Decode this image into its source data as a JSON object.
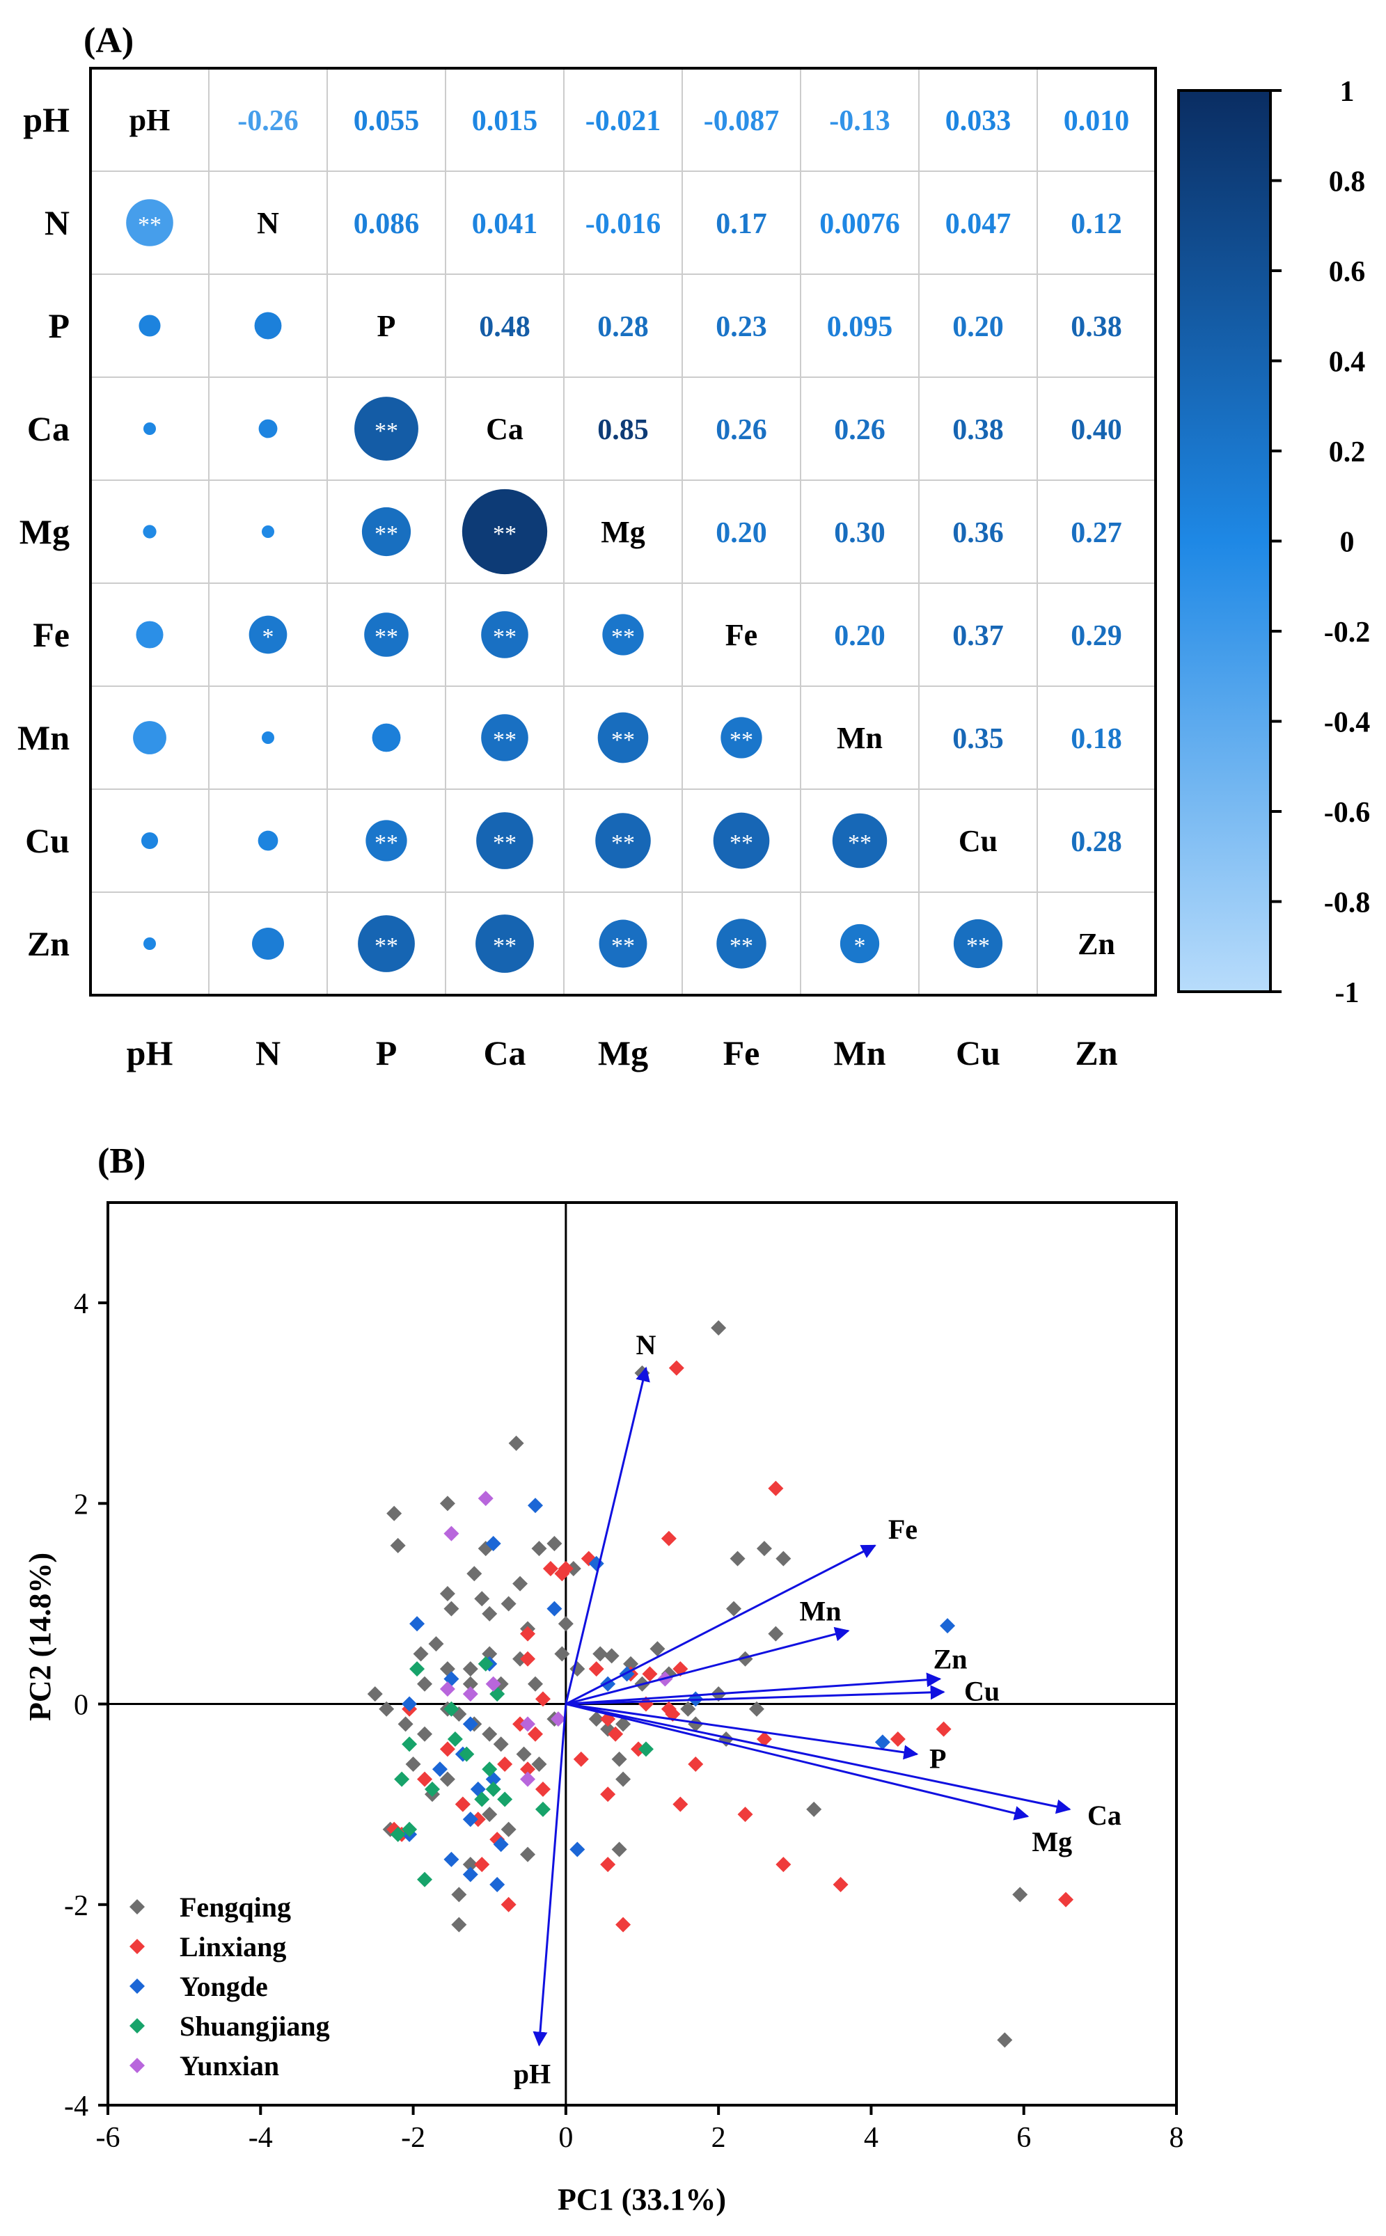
{
  "chart_data": [
    {
      "type": "correlation-matrix",
      "panel_label": "(A)",
      "variables": [
        "pH",
        "N",
        "P",
        "Ca",
        "Mg",
        "Fe",
        "Mn",
        "Cu",
        "Zn"
      ],
      "upper_labels": [
        [
          "",
          "-0.26",
          "0.055",
          "0.015",
          "-0.021",
          "-0.087",
          "-0.13",
          "0.033",
          "0.010"
        ],
        [
          "",
          "",
          "0.086",
          "0.041",
          "-0.016",
          "0.17",
          "0.0076",
          "0.047",
          "0.12"
        ],
        [
          "",
          "",
          "",
          "0.48",
          "0.28",
          "0.23",
          "0.095",
          "0.20",
          "0.38"
        ],
        [
          "",
          "",
          "",
          "",
          "0.85",
          "0.26",
          "0.26",
          "0.38",
          "0.40"
        ],
        [
          "",
          "",
          "",
          "",
          "",
          "0.20",
          "0.30",
          "0.36",
          "0.27"
        ],
        [
          "",
          "",
          "",
          "",
          "",
          "",
          "0.20",
          "0.37",
          "0.29"
        ],
        [
          "",
          "",
          "",
          "",
          "",
          "",
          "",
          "0.35",
          "0.18"
        ],
        [
          "",
          "",
          "",
          "",
          "",
          "",
          "",
          "",
          "0.28"
        ],
        [
          "",
          "",
          "",
          "",
          "",
          "",
          "",
          "",
          ""
        ]
      ],
      "significance": [
        [
          "",
          "",
          "",
          "",
          "",
          "",
          "",
          "",
          ""
        ],
        [
          "**",
          "",
          "",
          "",
          "",
          "",
          "",
          "",
          ""
        ],
        [
          "",
          "",
          "",
          "",
          "",
          "",
          "",
          "",
          ""
        ],
        [
          "",
          "",
          "**",
          "",
          "",
          "",
          "",
          "",
          ""
        ],
        [
          "",
          "",
          "**",
          "**",
          "",
          "",
          "",
          "",
          ""
        ],
        [
          "",
          "*",
          "**",
          "**",
          "**",
          "",
          "",
          "",
          ""
        ],
        [
          "",
          "",
          "",
          "**",
          "**",
          "**",
          "",
          "",
          ""
        ],
        [
          "",
          "",
          "**",
          "**",
          "**",
          "**",
          "**",
          "",
          ""
        ],
        [
          "",
          "",
          "**",
          "**",
          "**",
          "**",
          "*",
          "**",
          ""
        ]
      ],
      "colorbar": {
        "min": -1,
        "max": 1,
        "ticks": [
          "1",
          "0.8",
          "0.6",
          "0.4",
          "0.2",
          "0",
          "-0.2",
          "-0.4",
          "-0.6",
          "-0.8",
          "-1"
        ],
        "color_low": "#b8dcfb",
        "color_mid": "#1e88e5",
        "color_high": "#0a2d62"
      }
    },
    {
      "type": "biplot-scatter",
      "panel_label": "(B)",
      "xlabel": "PC1 (33.1%)",
      "ylabel": "PC2 (14.8%)",
      "xlim": [
        -6,
        8
      ],
      "ylim": [
        -4,
        5
      ],
      "xticks": [
        "-6",
        "-4",
        "-2",
        "0",
        "2",
        "4",
        "6",
        "8"
      ],
      "yticks": [
        "-4",
        "-2",
        "0",
        "2",
        "4"
      ],
      "legend_position": "bottom-left",
      "loadings": [
        {
          "label": "N",
          "x": 1.05,
          "y": 3.35
        },
        {
          "label": "Fe",
          "x": 4.05,
          "y": 1.58
        },
        {
          "label": "Mn",
          "x": 3.7,
          "y": 0.73
        },
        {
          "label": "Zn",
          "x": 4.9,
          "y": 0.25
        },
        {
          "label": "Cu",
          "x": 4.95,
          "y": 0.12
        },
        {
          "label": "P",
          "x": 4.6,
          "y": -0.5
        },
        {
          "label": "Ca",
          "x": 6.6,
          "y": -1.05
        },
        {
          "label": "Mg",
          "x": 6.05,
          "y": -1.12
        },
        {
          "label": "pH",
          "x": -0.35,
          "y": -3.4
        }
      ],
      "series": [
        {
          "name": "Fengqing",
          "color": "#6e6e6e",
          "points": [
            [
              2.0,
              3.75
            ],
            [
              1.0,
              3.3
            ],
            [
              -0.65,
              2.6
            ],
            [
              -2.25,
              1.9
            ],
            [
              -2.2,
              1.58
            ],
            [
              -1.55,
              2.0
            ],
            [
              -1.05,
              1.55
            ],
            [
              -1.2,
              1.3
            ],
            [
              -1.55,
              1.1
            ],
            [
              -1.1,
              1.05
            ],
            [
              -1.0,
              0.9
            ],
            [
              -0.35,
              1.55
            ],
            [
              -0.15,
              1.6
            ],
            [
              -0.6,
              1.2
            ],
            [
              -0.75,
              1.0
            ],
            [
              -0.5,
              0.75
            ],
            [
              0.0,
              0.8
            ],
            [
              -0.05,
              0.5
            ],
            [
              0.1,
              1.35
            ],
            [
              0.15,
              0.35
            ],
            [
              0.45,
              0.5
            ],
            [
              0.6,
              0.48
            ],
            [
              0.85,
              0.4
            ],
            [
              1.2,
              0.55
            ],
            [
              1.0,
              0.2
            ],
            [
              1.35,
              0.3
            ],
            [
              2.6,
              1.55
            ],
            [
              2.85,
              1.45
            ],
            [
              2.25,
              1.45
            ],
            [
              2.2,
              0.95
            ],
            [
              2.75,
              0.7
            ],
            [
              2.35,
              0.45
            ],
            [
              2.0,
              0.1
            ],
            [
              2.5,
              -0.05
            ],
            [
              1.6,
              -0.05
            ],
            [
              1.7,
              -0.2
            ],
            [
              2.1,
              -0.35
            ],
            [
              0.75,
              -0.2
            ],
            [
              0.7,
              -0.55
            ],
            [
              0.75,
              -0.75
            ],
            [
              -1.5,
              0.95
            ],
            [
              -1.7,
              0.6
            ],
            [
              -1.9,
              0.5
            ],
            [
              -1.25,
              0.35
            ],
            [
              -1.0,
              0.5
            ],
            [
              -1.85,
              0.2
            ],
            [
              -1.55,
              0.35
            ],
            [
              -1.25,
              0.2
            ],
            [
              -0.85,
              0.2
            ],
            [
              -0.6,
              0.45
            ],
            [
              -0.4,
              0.2
            ],
            [
              -2.5,
              0.1
            ],
            [
              -2.35,
              -0.05
            ],
            [
              -2.1,
              -0.2
            ],
            [
              -1.85,
              -0.3
            ],
            [
              -1.55,
              -0.05
            ],
            [
              -1.4,
              -0.1
            ],
            [
              -1.2,
              -0.2
            ],
            [
              -1.0,
              -0.3
            ],
            [
              -0.85,
              -0.4
            ],
            [
              -0.55,
              -0.5
            ],
            [
              -0.35,
              -0.6
            ],
            [
              -2.0,
              -0.6
            ],
            [
              -1.75,
              -0.9
            ],
            [
              -1.55,
              -0.75
            ],
            [
              -1.35,
              -1.0
            ],
            [
              -1.0,
              -1.1
            ],
            [
              -0.75,
              -1.25
            ],
            [
              -0.5,
              -1.5
            ],
            [
              -1.25,
              -1.6
            ],
            [
              -1.4,
              -1.9
            ],
            [
              -1.4,
              -2.2
            ],
            [
              -2.3,
              -1.25
            ],
            [
              -0.15,
              -0.15
            ],
            [
              0.4,
              -0.15
            ],
            [
              0.55,
              -0.25
            ],
            [
              3.25,
              -1.05
            ],
            [
              5.95,
              -1.9
            ],
            [
              5.75,
              -3.35
            ],
            [
              0.7,
              -1.45
            ]
          ]
        },
        {
          "name": "Linxiang",
          "color": "#ef3b3b",
          "points": [
            [
              1.45,
              3.35
            ],
            [
              2.75,
              2.15
            ],
            [
              1.35,
              1.65
            ],
            [
              -0.2,
              1.35
            ],
            [
              0.0,
              1.35
            ],
            [
              0.3,
              1.45
            ],
            [
              -0.05,
              1.3
            ],
            [
              -0.5,
              0.7
            ],
            [
              -0.5,
              0.45
            ],
            [
              0.4,
              0.35
            ],
            [
              0.85,
              0.3
            ],
            [
              1.1,
              0.3
            ],
            [
              1.5,
              0.35
            ],
            [
              1.05,
              0.0
            ],
            [
              1.35,
              -0.05
            ],
            [
              0.55,
              -0.15
            ],
            [
              0.65,
              -0.3
            ],
            [
              0.95,
              -0.45
            ],
            [
              -0.3,
              0.05
            ],
            [
              -0.6,
              -0.2
            ],
            [
              -0.4,
              -0.3
            ],
            [
              -0.5,
              -0.65
            ],
            [
              -0.3,
              -0.85
            ],
            [
              -0.8,
              -0.6
            ],
            [
              -1.35,
              -1.0
            ],
            [
              -1.15,
              -1.15
            ],
            [
              -0.9,
              -1.35
            ],
            [
              -1.1,
              -1.6
            ],
            [
              -0.75,
              -2.0
            ],
            [
              0.2,
              -0.55
            ],
            [
              0.55,
              -0.9
            ],
            [
              1.4,
              -0.1
            ],
            [
              1.7,
              -0.6
            ],
            [
              1.5,
              -1.0
            ],
            [
              2.6,
              -0.35
            ],
            [
              2.35,
              -1.1
            ],
            [
              2.85,
              -1.6
            ],
            [
              3.6,
              -1.8
            ],
            [
              4.35,
              -0.35
            ],
            [
              4.95,
              -0.25
            ],
            [
              6.55,
              -1.95
            ],
            [
              0.75,
              -2.2
            ],
            [
              0.55,
              -1.6
            ],
            [
              -2.05,
              -0.05
            ],
            [
              -2.25,
              -1.25
            ],
            [
              -2.15,
              -1.3
            ],
            [
              -1.85,
              -0.75
            ],
            [
              -1.55,
              -0.45
            ]
          ]
        },
        {
          "name": "Yongde",
          "color": "#1b66d6",
          "points": [
            [
              -0.4,
              1.98
            ],
            [
              -0.95,
              1.6
            ],
            [
              0.4,
              1.4
            ],
            [
              -0.15,
              0.95
            ],
            [
              -1.0,
              0.4
            ],
            [
              -1.95,
              0.8
            ],
            [
              -1.5,
              0.25
            ],
            [
              -1.25,
              -0.2
            ],
            [
              -1.35,
              -0.5
            ],
            [
              -1.65,
              -0.65
            ],
            [
              -1.15,
              -0.85
            ],
            [
              -0.95,
              -0.75
            ],
            [
              -1.25,
              -1.15
            ],
            [
              -0.85,
              -1.4
            ],
            [
              -1.25,
              -1.7
            ],
            [
              -0.9,
              -1.8
            ],
            [
              -1.5,
              -1.55
            ],
            [
              -2.05,
              -1.3
            ],
            [
              -2.05,
              0.0
            ],
            [
              0.15,
              -1.45
            ],
            [
              1.7,
              0.05
            ],
            [
              0.8,
              0.3
            ],
            [
              5.0,
              0.78
            ],
            [
              4.15,
              -0.38
            ],
            [
              0.55,
              0.2
            ]
          ]
        },
        {
          "name": "Shuangjiang",
          "color": "#17a36a",
          "points": [
            [
              -1.95,
              0.35
            ],
            [
              -1.05,
              0.4
            ],
            [
              -1.5,
              -0.05
            ],
            [
              -2.05,
              -0.4
            ],
            [
              -2.15,
              -0.75
            ],
            [
              -2.05,
              -1.25
            ],
            [
              -1.45,
              -0.35
            ],
            [
              -1.3,
              -0.5
            ],
            [
              -1.0,
              -0.65
            ],
            [
              -0.95,
              -0.85
            ],
            [
              -0.8,
              -0.95
            ],
            [
              -0.3,
              -1.05
            ],
            [
              -1.75,
              -0.85
            ],
            [
              -1.1,
              -0.95
            ],
            [
              -1.85,
              -1.75
            ],
            [
              1.05,
              -0.45
            ],
            [
              -0.9,
              0.1
            ],
            [
              -2.2,
              -1.3
            ]
          ]
        },
        {
          "name": "Yunxian",
          "color": "#b866dc",
          "points": [
            [
              -1.05,
              2.05
            ],
            [
              -1.5,
              1.7
            ],
            [
              -1.55,
              0.15
            ],
            [
              -0.95,
              0.2
            ],
            [
              -0.5,
              -0.75
            ],
            [
              -0.5,
              -0.2
            ],
            [
              -0.1,
              -0.15
            ],
            [
              1.3,
              0.25
            ],
            [
              -1.25,
              0.1
            ]
          ]
        }
      ]
    }
  ]
}
